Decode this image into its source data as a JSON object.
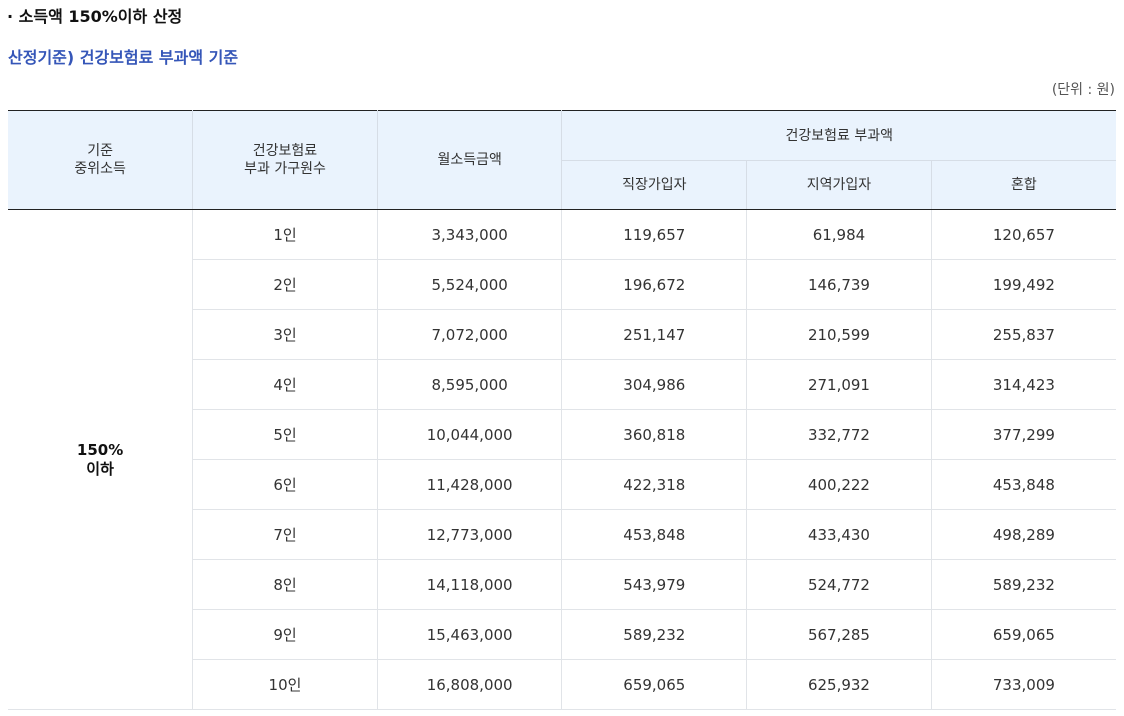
{
  "heading": "· 소득액 150%이하 산정",
  "subheading": "산정기준) 건강보험료 부과액 기준",
  "unit": "(단위 : 원)",
  "table": {
    "headers": {
      "group_line1": "기준",
      "group_line2": "중위소득",
      "household_line1": "건강보험료",
      "household_line2": "부과 가구원수",
      "income": "월소득금액",
      "premium_group": "건강보험료 부과액",
      "employee": "직장가입자",
      "regional": "지역가입자",
      "mixed": "혼합"
    },
    "group_label_line1": "150%",
    "group_label_line2": "이하",
    "rows": [
      [
        "1인",
        "3,343,000",
        "119,657",
        "61,984",
        "120,657"
      ],
      [
        "2인",
        "5,524,000",
        "196,672",
        "146,739",
        "199,492"
      ],
      [
        "3인",
        "7,072,000",
        "251,147",
        "210,599",
        "255,837"
      ],
      [
        "4인",
        "8,595,000",
        "304,986",
        "271,091",
        "314,423"
      ],
      [
        "5인",
        "10,044,000",
        "360,818",
        "332,772",
        "377,299"
      ],
      [
        "6인",
        "11,428,000",
        "422,318",
        "400,222",
        "453,848"
      ],
      [
        "7인",
        "12,773,000",
        "453,848",
        "433,430",
        "498,289"
      ],
      [
        "8인",
        "14,118,000",
        "543,979",
        "524,772",
        "589,232"
      ],
      [
        "9인",
        "15,463,000",
        "589,232",
        "567,285",
        "659,065"
      ],
      [
        "10인",
        "16,808,000",
        "659,065",
        "625,932",
        "733,009"
      ]
    ]
  },
  "colors": {
    "subheading": "#3556b8",
    "header_bg": "#eaf3fd"
  }
}
